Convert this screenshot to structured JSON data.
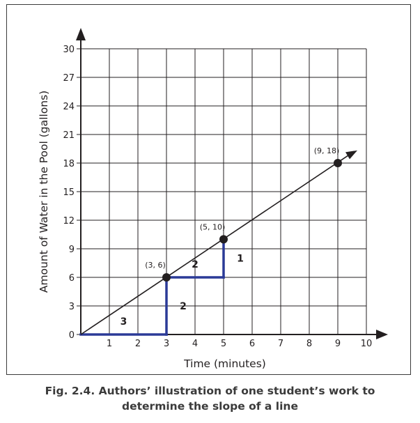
{
  "chart_data": {
    "type": "line",
    "x": [
      0,
      9
    ],
    "y": [
      0,
      18
    ],
    "xlabel": "Time (minutes)",
    "ylabel": "Amount of Water in the Pool (gallons)",
    "xlim": [
      0,
      10
    ],
    "ylim": [
      0,
      30
    ],
    "x_ticks": [
      "1",
      "2",
      "3",
      "4",
      "5",
      "6",
      "7",
      "8",
      "9",
      "10"
    ],
    "y_ticks": [
      "0",
      "3",
      "6",
      "9",
      "12",
      "15",
      "18",
      "21",
      "24",
      "27",
      "30"
    ],
    "grid": true,
    "points": [
      {
        "x": 3,
        "y": 6,
        "label": "(3, 6)"
      },
      {
        "x": 5,
        "y": 10,
        "label": "(5, 10)"
      },
      {
        "x": 9,
        "y": 18,
        "label": "(9, 18)"
      }
    ],
    "slope_steps": [
      {
        "from": [
          0,
          0
        ],
        "to": [
          3,
          0
        ],
        "label": "3"
      },
      {
        "from": [
          3,
          0
        ],
        "to": [
          3,
          6
        ],
        "label": "2"
      },
      {
        "from": [
          3,
          6
        ],
        "to": [
          5,
          6
        ],
        "label": "2"
      },
      {
        "from": [
          5,
          6
        ],
        "to": [
          5,
          10
        ],
        "label": "1"
      }
    ],
    "colors": {
      "line": "#231f20",
      "steps": "#2b3a97",
      "grid": "#231f20"
    }
  },
  "caption": "Fig. 2.4. Authors’ illustration of one student’s work to determine the slope of a line"
}
